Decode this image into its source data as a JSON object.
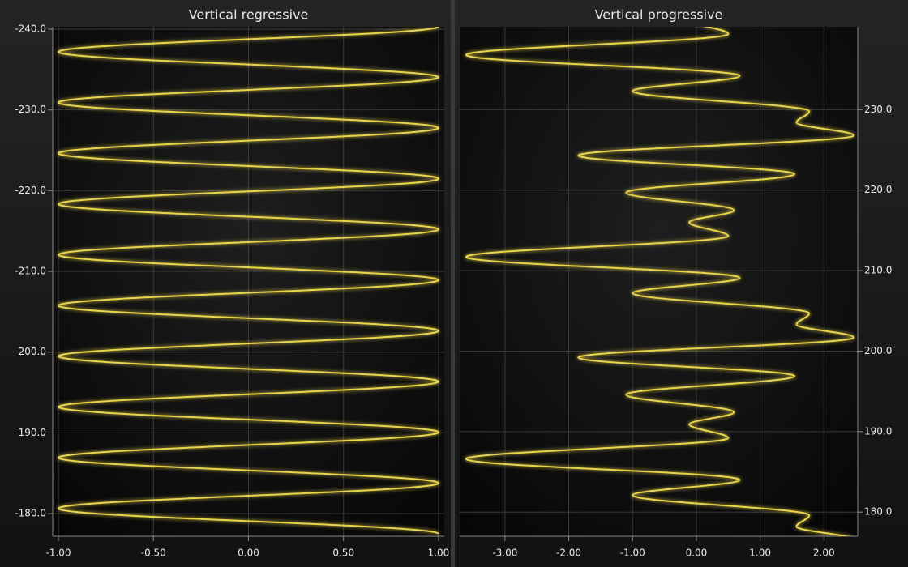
{
  "chart_data": [
    {
      "type": "line",
      "orientation": "vertical",
      "title": "Vertical regressive",
      "color": "#e8d44d",
      "y_axis_side": "left",
      "y": [
        -177.5,
        -180.64,
        -183.78,
        -186.92,
        -190.07,
        -193.21,
        -196.35,
        -199.49,
        -202.63,
        -205.77,
        -208.92,
        -212.06,
        -215.2,
        -218.34,
        -221.48,
        -224.62,
        -227.77,
        -230.91,
        -234.05,
        -237.19,
        -240.33
      ],
      "values": [
        1,
        -1,
        1,
        -1,
        1,
        -1,
        1,
        -1,
        1,
        -1,
        1,
        -1,
        1,
        -1,
        1,
        -1,
        1,
        -1,
        1,
        -1,
        1
      ],
      "xlim": [
        -1.03,
        1.03
      ],
      "xticks": [
        {
          "value": -1,
          "label": "-1.00"
        },
        {
          "value": -0.5,
          "label": "-0.50"
        },
        {
          "value": 0,
          "label": "0.00"
        },
        {
          "value": 0.5,
          "label": "0.50"
        },
        {
          "value": 1,
          "label": "1.00"
        }
      ],
      "ylim": [
        -177.2,
        -240
      ],
      "yticks": [
        {
          "value": -180,
          "label": "-180.0"
        },
        {
          "value": -190,
          "label": "-190.0"
        },
        {
          "value": -200,
          "label": "-200.0"
        },
        {
          "value": -210,
          "label": "-210.0"
        },
        {
          "value": -220,
          "label": "-220.0"
        },
        {
          "value": -230,
          "label": "-230.0"
        },
        {
          "value": -240,
          "label": "-240.0"
        }
      ],
      "grid": true
    },
    {
      "type": "line",
      "orientation": "vertical",
      "title": "Vertical progressive",
      "color": "#e8d44d",
      "y_axis_side": "right",
      "y": [
        176.6,
        178.2,
        179.6,
        182.1,
        184.0,
        186.6,
        189.2,
        190.9,
        192.4,
        194.6,
        196.9,
        199.2,
        201.7,
        203.3,
        204.7,
        207.2,
        209.1,
        211.7,
        214.3,
        216.0,
        217.5,
        219.7,
        222.0,
        224.3,
        226.8,
        228.4,
        229.8,
        232.3,
        234.2,
        236.8,
        239.4,
        241.1
      ],
      "values": [
        2.47,
        1.57,
        1.77,
        -1.0,
        0.68,
        -3.61,
        0.5,
        -0.11,
        0.59,
        -1.1,
        1.54,
        -1.85,
        2.47,
        1.57,
        1.77,
        -1.0,
        0.68,
        -3.61,
        0.5,
        -0.11,
        0.59,
        -1.1,
        1.54,
        -1.85,
        2.47,
        1.57,
        1.77,
        -1.0,
        0.68,
        -3.61,
        0.5,
        -0.11
      ],
      "xlim": [
        -3.71,
        2.53
      ],
      "xticks": [
        {
          "value": -3,
          "label": "-3.00"
        },
        {
          "value": -2,
          "label": "-2.00"
        },
        {
          "value": -1,
          "label": "-1.00"
        },
        {
          "value": 0,
          "label": "0.00"
        },
        {
          "value": 1,
          "label": "1.00"
        },
        {
          "value": 2,
          "label": "2.00"
        }
      ],
      "ylim": [
        177.0,
        240.0
      ],
      "yticks": [
        {
          "value": 180,
          "label": "180.0"
        },
        {
          "value": 190,
          "label": "190.0"
        },
        {
          "value": 200,
          "label": "200.0"
        },
        {
          "value": 210,
          "label": "210.0"
        },
        {
          "value": 220,
          "label": "220.0"
        },
        {
          "value": 230,
          "label": "230.0"
        }
      ],
      "grid": true
    }
  ]
}
